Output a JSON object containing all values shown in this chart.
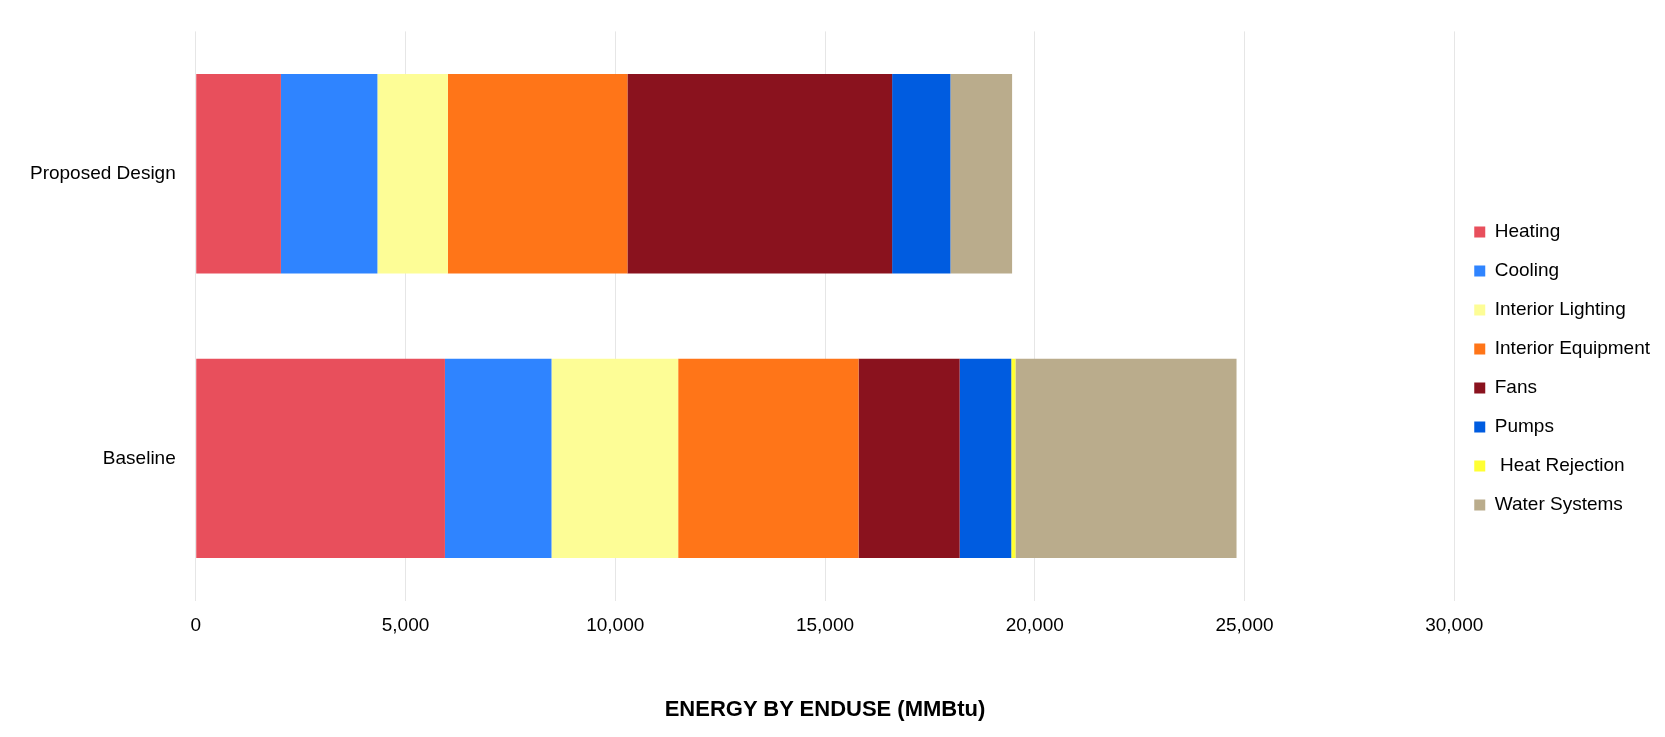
{
  "chart_data": {
    "type": "bar",
    "orientation": "horizontal",
    "stacked": true,
    "xlabel": "ENERGY BY ENDUSE (MMBtu)",
    "categories": [
      "Proposed Design",
      "Baseline"
    ],
    "series": [
      {
        "name": "Heating",
        "color": "#e84f5c",
        "values": [
          2030,
          5940
        ]
      },
      {
        "name": "Cooling",
        "color": "#2f84ff",
        "values": [
          2300,
          2540
        ]
      },
      {
        "name": "Interior Lighting",
        "color": "#fdfd96",
        "values": [
          1680,
          3020
        ]
      },
      {
        "name": "Interior Equipment",
        "color": "#ff7518",
        "values": [
          4280,
          4300
        ]
      },
      {
        "name": "Fans",
        "color": "#8a121e",
        "values": [
          6310,
          2410
        ]
      },
      {
        "name": "Pumps",
        "color": "#005ce0",
        "values": [
          1390,
          1230
        ]
      },
      {
        "name": " Heat Rejection",
        "color": "#ffff33",
        "values": [
          0,
          100
        ]
      },
      {
        "name": "Water Systems",
        "color": "#baac8c",
        "values": [
          1470,
          5270
        ]
      }
    ],
    "xlim": [
      0,
      30000
    ],
    "xticks": [
      0,
      {
        "value": 5000,
        "label": "5,000"
      },
      {
        "value": 10000,
        "label": "10,000"
      },
      {
        "value": 15000,
        "label": "15,000"
      },
      {
        "value": 20000,
        "label": "20,000"
      },
      {
        "value": 25000,
        "label": "25,000"
      },
      {
        "value": 30000,
        "label": "30,000"
      }
    ],
    "grid": "x",
    "legend": "right"
  }
}
